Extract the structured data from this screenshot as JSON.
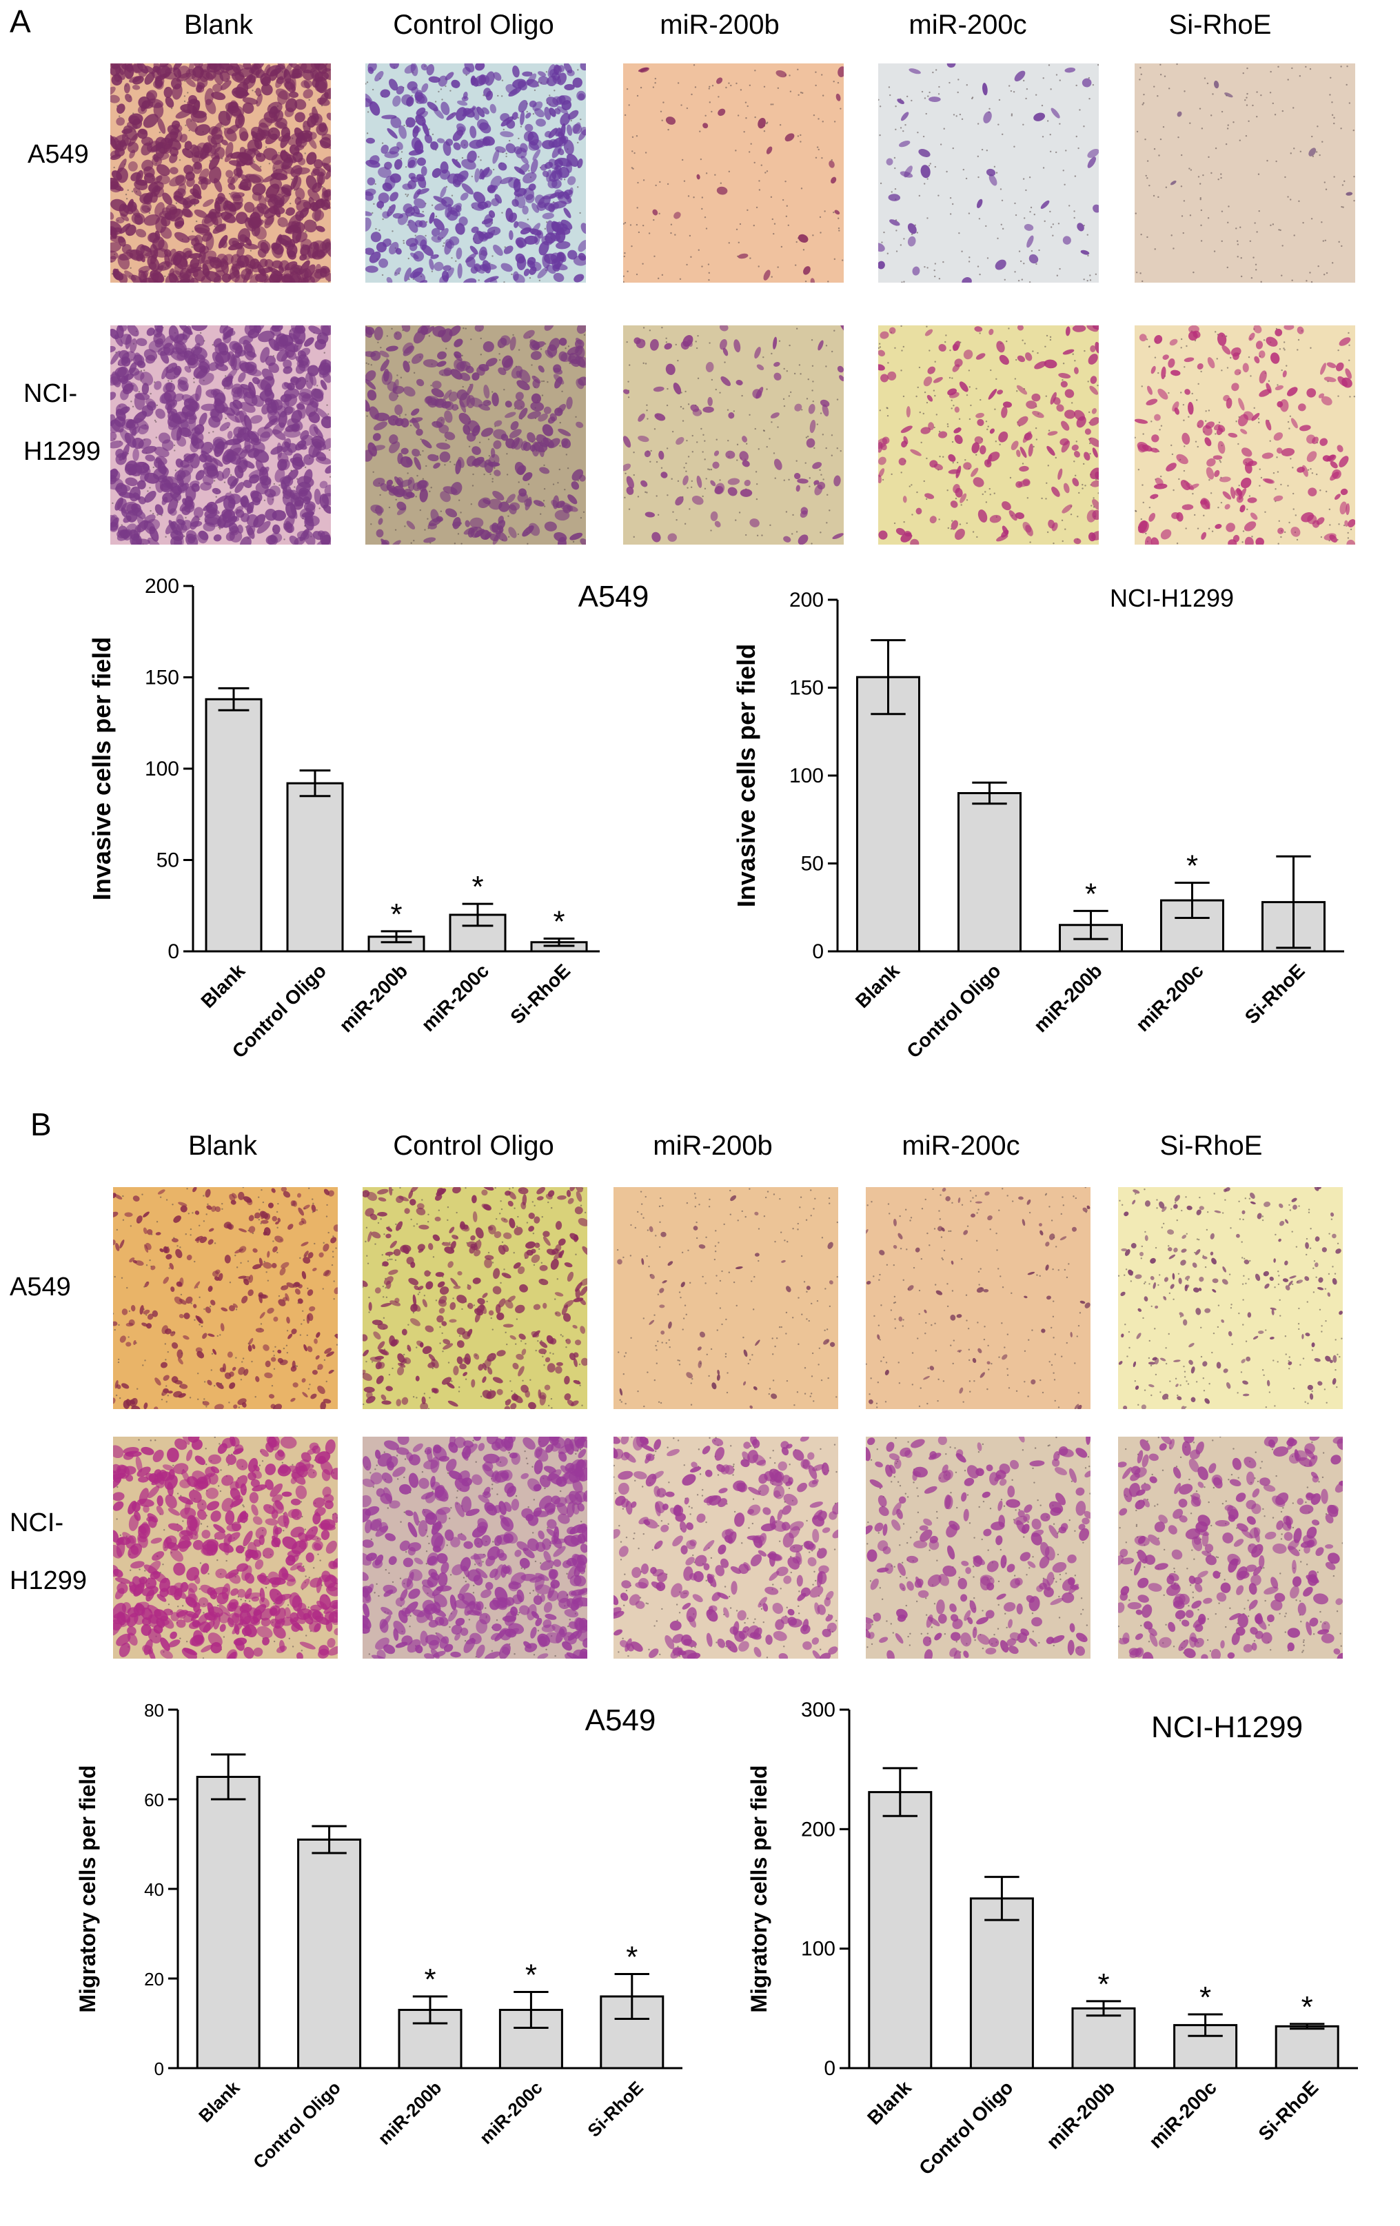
{
  "panel_a": {
    "letter": "A",
    "columns": [
      "Blank",
      "Control Oligo",
      "miR-200b",
      "miR-200c",
      "Si-RhoE"
    ],
    "rows": [
      {
        "label_lines": [
          "A549"
        ]
      },
      {
        "label_lines": [
          "NCI-",
          "H1299"
        ]
      }
    ]
  },
  "panel_b": {
    "letter": "B",
    "columns": [
      "Blank",
      "Control Oligo",
      "miR-200b",
      "miR-200c",
      "Si-RhoE"
    ],
    "rows": [
      {
        "label_lines": [
          "A549"
        ]
      },
      {
        "label_lines": [
          "NCI-",
          "H1299"
        ]
      }
    ]
  },
  "colors": {
    "bar_fill": "#d9d9d9",
    "stroke": "#000000",
    "stain_purple": "#7a2f8f",
    "stain_magenta": "#b02a78"
  },
  "chart_data": [
    {
      "type": "bar",
      "title": "A549",
      "ylabel": "Invasive cells per field",
      "categories": [
        "Blank",
        "Control Oligo",
        "miR-200b",
        "miR-200c",
        "Si-RhoE"
      ],
      "values": [
        138,
        92,
        8,
        20,
        5
      ],
      "errors": [
        6,
        7,
        3,
        6,
        2
      ],
      "significance": [
        "",
        "",
        "*",
        "*",
        "*"
      ],
      "ylim": [
        0,
        200
      ],
      "yticks": [
        0,
        50,
        100,
        150,
        200
      ]
    },
    {
      "type": "bar",
      "title": "NCI-H1299",
      "ylabel": "Invasive cells per field",
      "categories": [
        "Blank",
        "Control Oligo",
        "miR-200b",
        "miR-200c",
        "Si-RhoE"
      ],
      "values": [
        156,
        90,
        15,
        29,
        28
      ],
      "errors": [
        21,
        6,
        8,
        10,
        26
      ],
      "significance": [
        "",
        "",
        "*",
        "*",
        ""
      ],
      "ylim": [
        0,
        200
      ],
      "yticks": [
        0,
        50,
        100,
        150,
        200
      ]
    },
    {
      "type": "bar",
      "title": "A549",
      "ylabel": "Migratory cells per field",
      "categories": [
        "Blank",
        "Control Oligo",
        "miR-200b",
        "miR-200c",
        "Si-RhoE"
      ],
      "values": [
        65,
        51,
        13,
        13,
        16
      ],
      "errors": [
        5,
        3,
        3,
        4,
        5
      ],
      "significance": [
        "",
        "",
        "*",
        "*",
        "*"
      ],
      "ylim": [
        0,
        80
      ],
      "yticks": [
        0,
        20,
        40,
        60,
        80
      ]
    },
    {
      "type": "bar",
      "title": "NCI-H1299",
      "ylabel": "Migratory cells per field",
      "categories": [
        "Blank",
        "Control Oligo",
        "miR-200b",
        "miR-200c",
        "Si-RhoE"
      ],
      "values": [
        231,
        142,
        50,
        36,
        35
      ],
      "errors": [
        20,
        18,
        6,
        9,
        2
      ],
      "significance": [
        "",
        "",
        "*",
        "*",
        "*"
      ],
      "ylim": [
        0,
        300
      ],
      "yticks": [
        0,
        100,
        200,
        300
      ]
    }
  ]
}
